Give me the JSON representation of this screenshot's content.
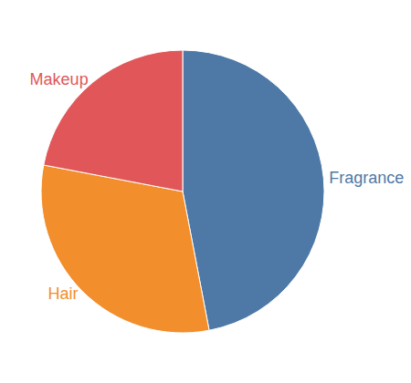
{
  "chart_data": {
    "type": "pie",
    "categories": [
      "Fragrance",
      "Hair",
      "Makeup"
    ],
    "values": [
      47,
      31,
      22
    ],
    "colors": [
      "#4e79a7",
      "#f28e2b",
      "#e15759"
    ]
  }
}
